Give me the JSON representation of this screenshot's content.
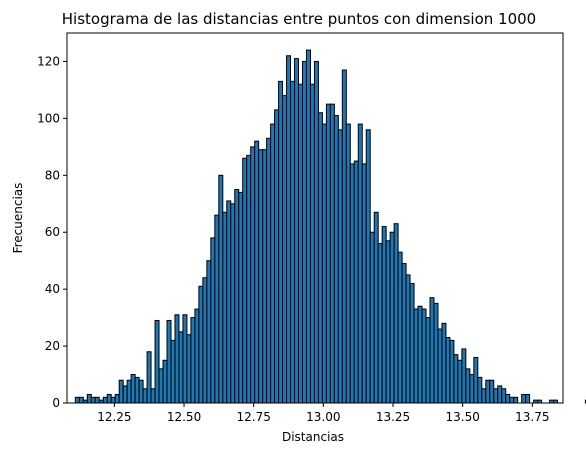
{
  "chart_data": {
    "type": "bar",
    "title": "Histograma de las distancias entre puntos con dimension 1000",
    "xlabel": "Distancias",
    "ylabel": "Frecuencias",
    "xlim": [
      12.08,
      13.86
    ],
    "ylim": [
      0,
      130
    ],
    "xticks": [
      "12.25",
      "12.50",
      "12.75",
      "13.00",
      "13.25",
      "13.50",
      "13.75"
    ],
    "yticks": [
      "0",
      "20",
      "40",
      "60",
      "80",
      "100",
      "120"
    ],
    "xtick_values": [
      12.25,
      12.5,
      12.75,
      13.0,
      13.25,
      13.5,
      13.75
    ],
    "ytick_values": [
      0,
      20,
      40,
      60,
      80,
      100,
      120
    ],
    "bin_start": 12.11,
    "bin_width": 0.0143,
    "values": [
      2,
      2,
      1,
      3,
      2,
      2,
      1,
      2,
      3,
      2,
      3,
      8,
      6,
      8,
      10,
      9,
      8,
      5,
      18,
      5,
      29,
      12,
      15,
      29,
      22,
      31,
      25,
      31,
      24,
      30,
      33,
      41,
      44,
      50,
      58,
      66,
      80,
      67,
      71,
      70,
      75,
      74,
      86,
      87,
      90,
      92,
      89,
      89,
      93,
      98,
      103,
      113,
      108,
      122,
      113,
      121,
      112,
      120,
      124,
      112,
      120,
      102,
      98,
      105,
      105,
      101,
      96,
      117,
      98,
      84,
      85,
      98,
      84,
      96,
      60,
      67,
      56,
      62,
      57,
      60,
      63,
      53,
      49,
      45,
      42,
      33,
      34,
      33,
      30,
      37,
      35,
      26,
      28,
      23,
      22,
      17,
      15,
      19,
      12,
      10,
      16,
      9,
      5,
      8,
      8,
      5,
      6,
      5,
      3,
      2,
      2,
      0,
      3,
      3,
      0,
      1,
      1,
      0,
      0,
      1,
      1,
      0,
      0,
      0,
      0,
      0,
      0,
      0,
      1
    ]
  }
}
